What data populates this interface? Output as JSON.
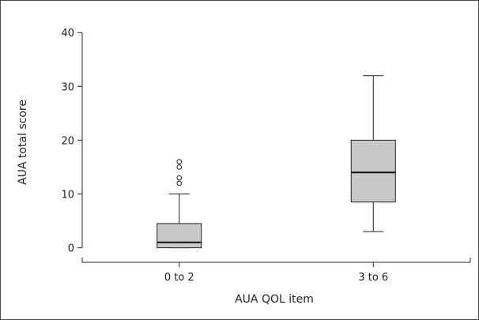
{
  "chart_data": {
    "type": "box",
    "xlabel": "AUA QOL item",
    "ylabel": "AUA total score",
    "ylim": [
      -3,
      44
    ],
    "yticks": [
      0,
      10,
      20,
      30,
      40
    ],
    "grid": false,
    "box_color": "#c8c8c8",
    "groups": [
      {
        "category": "0 to 2",
        "min": 0,
        "q1": 0,
        "median": 1,
        "q3": 4.5,
        "max": 10,
        "outliers": [
          12,
          13,
          15,
          16
        ]
      },
      {
        "category": "3 to 6",
        "min": 3,
        "q1": 8.5,
        "median": 14,
        "q3": 20,
        "max": 32,
        "outliers": []
      }
    ]
  }
}
